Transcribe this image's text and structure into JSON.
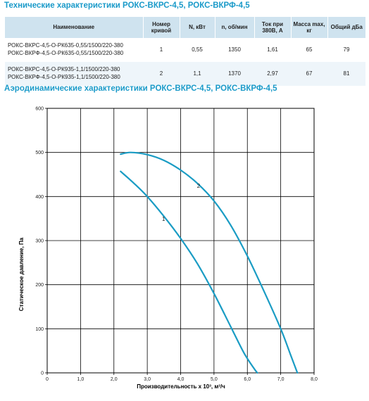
{
  "header": {
    "spec_title": "Технические характеристики РОКС-ВКРС-4,5, РОКС-ВКРФ-4,5",
    "aero_title": "Аэродинамические характеристики РОКС-ВКРС-4,5, РОКС-ВКРФ-4,5"
  },
  "table": {
    "columns": [
      "Наименование",
      "Номер кривой",
      "N, кВт",
      "n, об/мин",
      "Ток при 380В, А",
      "Масса max, кг",
      "Общий дБа"
    ],
    "rows": [
      {
        "names": [
          "РОКС-ВКРС-4,5-О-РК635-0,55/1500/220-380",
          "РОКС-ВКРФ-4,5-О-РК635-0,55/1500/220-380"
        ],
        "curve": "1",
        "power": "0,55",
        "rpm": "1350",
        "current": "1,61",
        "mass": "65",
        "noise": "79"
      },
      {
        "names": [
          "РОКС-ВКРС-4,5-О-РК935-1,1/1500/220-380",
          "РОКС-ВКРФ-4,5-О-РК935-1,1/1500/220-380"
        ],
        "curve": "2",
        "power": "1,1",
        "rpm": "1370",
        "current": "2,97",
        "mass": "67",
        "noise": "81"
      }
    ]
  },
  "chart_data": {
    "type": "line",
    "xlabel": "Производительность x 10³, м³/ч",
    "ylabel": "Статическое давление, Па",
    "xlim": [
      0,
      8
    ],
    "ylim": [
      0,
      600
    ],
    "x_ticks": [
      "0",
      "1,0",
      "2,0",
      "3,0",
      "4,0",
      "5,0",
      "6,0",
      "7,0",
      "8,0"
    ],
    "y_ticks": [
      "0",
      "100",
      "200",
      "300",
      "400",
      "500",
      "600"
    ],
    "grid": true,
    "line_color": "#1a9cc4",
    "series": [
      {
        "name": "1",
        "x": [
          2.2,
          2.6,
          3.0,
          3.5,
          4.0,
          4.5,
          5.0,
          5.5,
          5.9,
          6.2,
          6.3
        ],
        "y": [
          457,
          430,
          400,
          355,
          305,
          248,
          180,
          105,
          45,
          10,
          0
        ]
      },
      {
        "name": "2",
        "x": [
          2.2,
          2.5,
          3.0,
          3.5,
          4.0,
          4.5,
          5.0,
          5.5,
          6.0,
          6.5,
          7.0,
          7.3,
          7.5
        ],
        "y": [
          496,
          500,
          495,
          482,
          460,
          430,
          390,
          335,
          265,
          185,
          100,
          40,
          0
        ]
      }
    ]
  }
}
